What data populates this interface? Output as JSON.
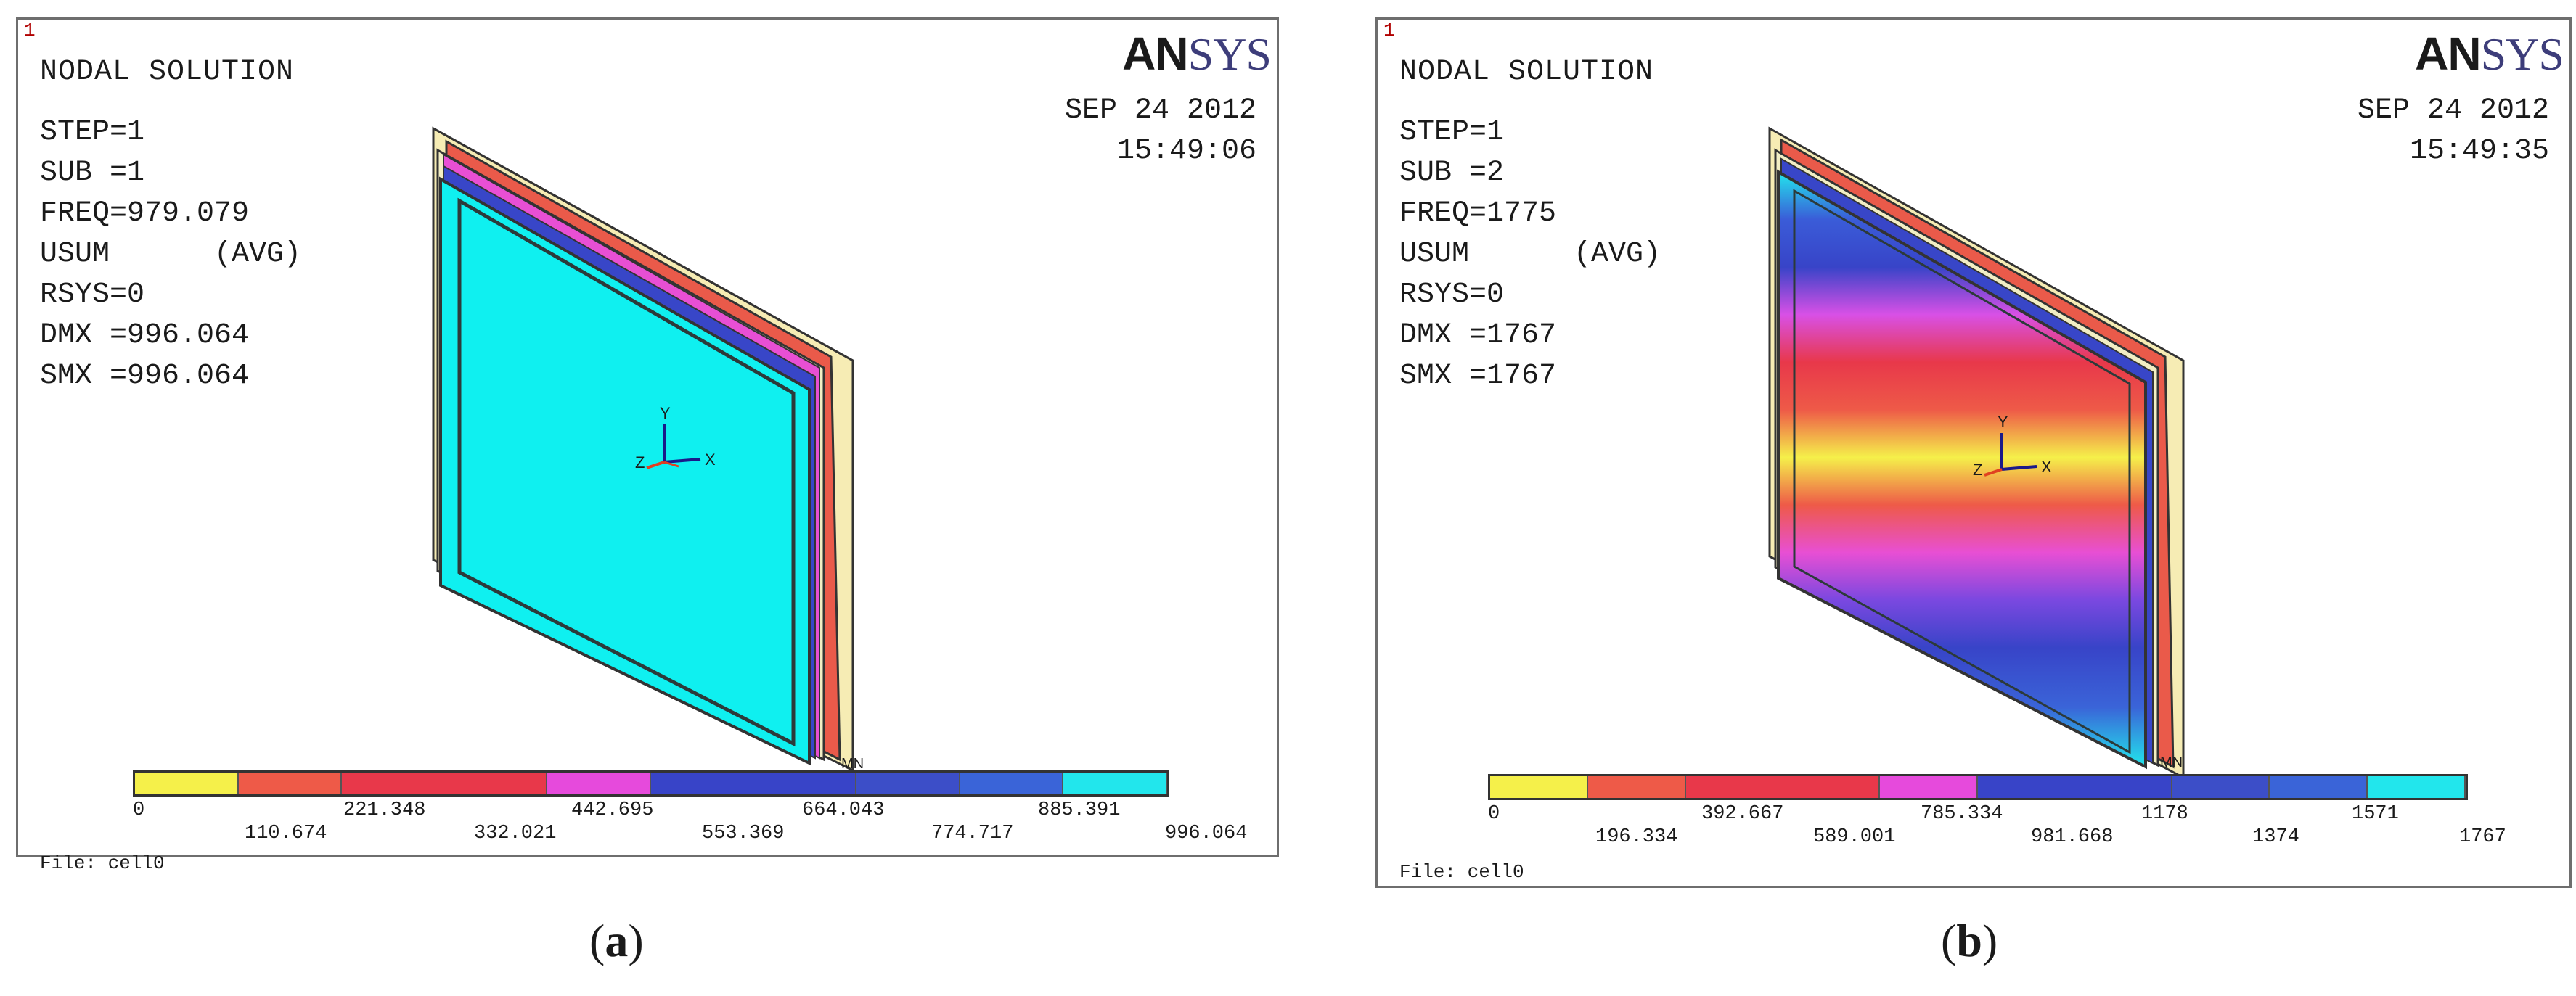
{
  "panels": [
    {
      "panel_number": "1",
      "header": "NODAL SOLUTION",
      "info_lines": [
        "STEP=1",
        "SUB =1",
        "FREQ=979.079",
        "USUM      (AVG)",
        "RSYS=0",
        "DMX =996.064",
        "SMX =996.064"
      ],
      "logo_an": "AN",
      "logo_sys": "SYS",
      "date": "SEP 24 2012",
      "time": "15:49:06",
      "axes": {
        "y": "Y",
        "z": "Z",
        "x": "X"
      },
      "marker": "MN",
      "legend_top": [
        "0",
        "221.348",
        "442.695",
        "664.043",
        "885.391"
      ],
      "legend_bottom": [
        "110.674",
        "332.021",
        "553.369",
        "774.717",
        "996.064"
      ],
      "file": "File: cell0",
      "caption": "a"
    },
    {
      "panel_number": "1",
      "header": "NODAL SOLUTION",
      "info_lines": [
        "STEP=1",
        "SUB =2",
        "FREQ=1775",
        "USUM      (AVG)",
        "RSYS=0",
        "DMX =1767",
        "SMX =1767"
      ],
      "logo_an": "AN",
      "logo_sys": "SYS",
      "date": "SEP 24 2012",
      "time": "15:49:35",
      "axes": {
        "y": "Y",
        "z": "Z",
        "x": "X"
      },
      "marker": "MN",
      "legend_top": [
        "0",
        "392.667",
        "785.334",
        "1178",
        "1571"
      ],
      "legend_bottom": [
        "196.334",
        "589.001",
        "981.668",
        "1374",
        "1767"
      ],
      "file": "File: cell0",
      "caption": "b"
    }
  ],
  "legend_colors": [
    "#f5f04a",
    "#ee5a48",
    "#e8384a",
    "#e64adc",
    "#3844c8",
    "#3c4ec8",
    "#3a64d8",
    "#22e6ec"
  ]
}
